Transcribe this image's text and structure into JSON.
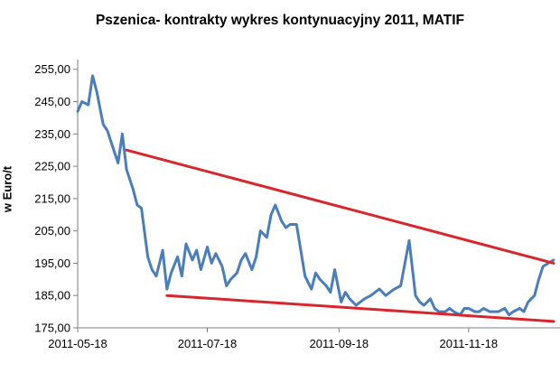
{
  "chart_data": {
    "type": "line",
    "title": "Pszenica- kontrakty wykres kontynuacyjny 2011, MATIF",
    "ylabel": "w Euro/t",
    "xlabel": "",
    "ylim": [
      175,
      258
    ],
    "yticks": [
      "255,00",
      "245,00",
      "235,00",
      "225,00",
      "215,00",
      "205,00",
      "195,00",
      "185,00",
      "175,00"
    ],
    "xticks": [
      "2011-05-18",
      "2011-07-18",
      "2011-09-18",
      "2011-11-18"
    ],
    "xlim": [
      "2011-05-18",
      "2011-12-31"
    ],
    "grid": false,
    "legend": "none",
    "colors": {
      "series": "#4a7ebb",
      "trend": "#d8262c",
      "axis": "#808080"
    },
    "series": [
      {
        "x": [
          "2011-05-18",
          "2011-05-20",
          "2011-05-23",
          "2011-05-25",
          "2011-05-27",
          "2011-05-30",
          "2011-06-01",
          "2011-06-03",
          "2011-06-06",
          "2011-06-08",
          "2011-06-10",
          "2011-06-13",
          "2011-06-15",
          "2011-06-17",
          "2011-06-20",
          "2011-06-22",
          "2011-06-24",
          "2011-06-27",
          "2011-06-29",
          "2011-07-01",
          "2011-07-04",
          "2011-07-06",
          "2011-07-08",
          "2011-07-11",
          "2011-07-13",
          "2011-07-15",
          "2011-07-18",
          "2011-07-20",
          "2011-07-22",
          "2011-07-25",
          "2011-07-27",
          "2011-07-29",
          "2011-08-01",
          "2011-08-03",
          "2011-08-05",
          "2011-08-08",
          "2011-08-10",
          "2011-08-12",
          "2011-08-15",
          "2011-08-17",
          "2011-08-19",
          "2011-08-22",
          "2011-08-24",
          "2011-08-26",
          "2011-08-29",
          "2011-08-31",
          "2011-09-02",
          "2011-09-05",
          "2011-09-07",
          "2011-09-09",
          "2011-09-12",
          "2011-09-14",
          "2011-09-16",
          "2011-09-19",
          "2011-09-21",
          "2011-09-23",
          "2011-09-26",
          "2011-09-28",
          "2011-09-30",
          "2011-10-03",
          "2011-10-05",
          "2011-10-07",
          "2011-10-10",
          "2011-10-12",
          "2011-10-14",
          "2011-10-17",
          "2011-10-19",
          "2011-10-21",
          "2011-10-24",
          "2011-10-26",
          "2011-10-28",
          "2011-10-31",
          "2011-11-02",
          "2011-11-04",
          "2011-11-07",
          "2011-11-09",
          "2011-11-11",
          "2011-11-14",
          "2011-11-16",
          "2011-11-18",
          "2011-11-21",
          "2011-11-23",
          "2011-11-25",
          "2011-11-28",
          "2011-11-30",
          "2011-12-02",
          "2011-12-05",
          "2011-12-07",
          "2011-12-09",
          "2011-12-12",
          "2011-12-14",
          "2011-12-16",
          "2011-12-19",
          "2011-12-21",
          "2011-12-23",
          "2011-12-28"
        ],
        "y": [
          242,
          245,
          244,
          253,
          248,
          238,
          236,
          232,
          226,
          235,
          224,
          218,
          213,
          212,
          197,
          193,
          191,
          199,
          187,
          192,
          197,
          191,
          201,
          196,
          199,
          193,
          200,
          195,
          198,
          194,
          188,
          190,
          192,
          196,
          198,
          193,
          197,
          205,
          203,
          210,
          213,
          208,
          206,
          207,
          207,
          199,
          191,
          187,
          192,
          190,
          188,
          186,
          193,
          183,
          186,
          184,
          182,
          183,
          184,
          185,
          186,
          187,
          185,
          186,
          187,
          188,
          195,
          202,
          185,
          183,
          182,
          184,
          181,
          180,
          180,
          181,
          180,
          179,
          181,
          181,
          180,
          180,
          181,
          180,
          180,
          180,
          181,
          179,
          180,
          181,
          180,
          183,
          185,
          190,
          194,
          196
        ]
      }
    ],
    "trendlines": [
      {
        "x": [
          "2011-06-10",
          "2011-12-28"
        ],
        "y": [
          230,
          195
        ]
      },
      {
        "x": [
          "2011-06-29",
          "2011-12-28"
        ],
        "y": [
          185,
          177
        ]
      }
    ]
  }
}
